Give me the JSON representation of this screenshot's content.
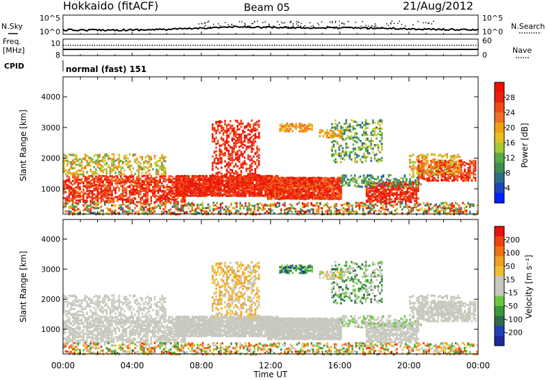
{
  "header": {
    "station": "Hokkaido (fitACF)",
    "beam": "Beam 05",
    "date": "21/Aug/2012"
  },
  "left_labels": {
    "nsky": "N.Sky",
    "freq_line1": "Freq.",
    "freq_line2": "[MHz]",
    "cpid": "CPID"
  },
  "right_labels": {
    "nsearch": "N.Search",
    "nave": "Nave"
  },
  "cpid_text": "normal (fast) 151",
  "chart_data": [
    {
      "type": "line",
      "panel": "noise",
      "yticks_left": [
        "10^5",
        "10^0"
      ],
      "yticks_right": [
        "10^5",
        "10^0"
      ],
      "series_legend": [
        "N.Sky",
        "N.Search"
      ],
      "x_hours": [
        0,
        1,
        2,
        3,
        4,
        5,
        6,
        7,
        8,
        9,
        10,
        11,
        12,
        13,
        14,
        15,
        16,
        17,
        18,
        19,
        20,
        21,
        22,
        23,
        24
      ],
      "nsky_level": [
        0.18,
        0.18,
        0.19,
        0.19,
        0.2,
        0.22,
        0.26,
        0.32,
        0.42,
        0.5,
        0.55,
        0.55,
        0.5,
        0.48,
        0.47,
        0.46,
        0.45,
        0.44,
        0.42,
        0.38,
        0.32,
        0.28,
        0.25,
        0.22,
        0.2
      ]
    },
    {
      "type": "line",
      "panel": "frequency",
      "yticks_left": [
        "10",
        "8"
      ],
      "yticks_right": [
        "60",
        "0"
      ],
      "series_legend": [
        "Freq.",
        "Nave"
      ]
    },
    {
      "type": "heatmap",
      "panel": "power",
      "ylabel": "Slant Range [km]",
      "yticks": [
        1000,
        2000,
        3000,
        4000
      ],
      "ylim": [
        180,
        4650
      ],
      "xlim": [
        0,
        24
      ],
      "colorbar_label": "Power [dB]",
      "colorbar_ticks": [
        4,
        8,
        12,
        16,
        20,
        24,
        28
      ],
      "colorbar_colors": [
        "#0020ff",
        "#1e44b8",
        "#2a6e8a",
        "#3c8e50",
        "#5aa848",
        "#a8c830",
        "#e8c020",
        "#f0a010",
        "#f07020",
        "#f04a10",
        "#e82010",
        "#f01000"
      ]
    },
    {
      "type": "heatmap",
      "panel": "velocity",
      "ylabel": "Slant Range [km]",
      "yticks": [
        1000,
        2000,
        3000,
        4000
      ],
      "ylim": [
        180,
        4650
      ],
      "xlim": [
        0,
        24
      ],
      "colorbar_label": "Velocity [m s⁻¹]",
      "colorbar_ticks": [
        200,
        100,
        50,
        15,
        -15,
        -50,
        -100,
        -200
      ],
      "colorbar_colors": [
        "#1a2a9a",
        "#2040b8",
        "#2e6a4a",
        "#3a9a3a",
        "#6cc840",
        "#c8c8be",
        "#c8c8be",
        "#f0c030",
        "#f0a020",
        "#f07010",
        "#f04010",
        "#e81010"
      ]
    }
  ],
  "x_axis": {
    "ticks": [
      "00:00",
      "04:00",
      "08:00",
      "12:00",
      "16:00",
      "20:00",
      "00:00"
    ],
    "label": "Time UT"
  }
}
